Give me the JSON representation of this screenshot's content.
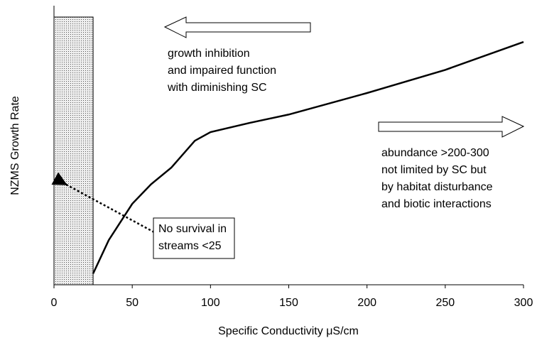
{
  "chart_data": {
    "type": "line",
    "x": [
      25,
      35,
      50,
      62,
      75,
      90,
      100,
      125,
      150,
      200,
      250,
      300
    ],
    "values": [
      4,
      16,
      29,
      36,
      42,
      51.6,
      54.7,
      58,
      61,
      68.7,
      77,
      87
    ],
    "color": "#000000",
    "xlim": [
      0,
      300
    ],
    "ylim": [
      0,
      100
    ],
    "xticks": [
      0,
      50,
      100,
      150,
      200,
      250,
      300
    ],
    "xlabel": "Specific Conductivity μS/cm",
    "ylabel": "NZMS Growth Rate",
    "shaded_region": [
      0,
      25
    ],
    "annotations": [
      [
        "growth inhibition",
        "and impaired function",
        "with diminishing SC"
      ],
      [
        "abundance >200-300",
        "not limited by SC but",
        "by habitat disturbance",
        "and biotic interactions"
      ],
      [
        "No survival in",
        "streams <25"
      ]
    ]
  }
}
